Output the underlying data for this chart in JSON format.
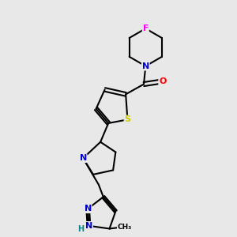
{
  "background_color": "#e8e8e8",
  "atom_colors": {
    "C": "#000000",
    "N": "#0000cc",
    "O": "#ff0000",
    "S": "#cccc00",
    "F": "#ff00ff",
    "H": "#008888"
  },
  "bond_lw": 1.5,
  "figsize": [
    3.0,
    3.0
  ],
  "dpi": 100,
  "xlim": [
    -1.2,
    2.8
  ],
  "ylim": [
    -3.5,
    3.0
  ]
}
